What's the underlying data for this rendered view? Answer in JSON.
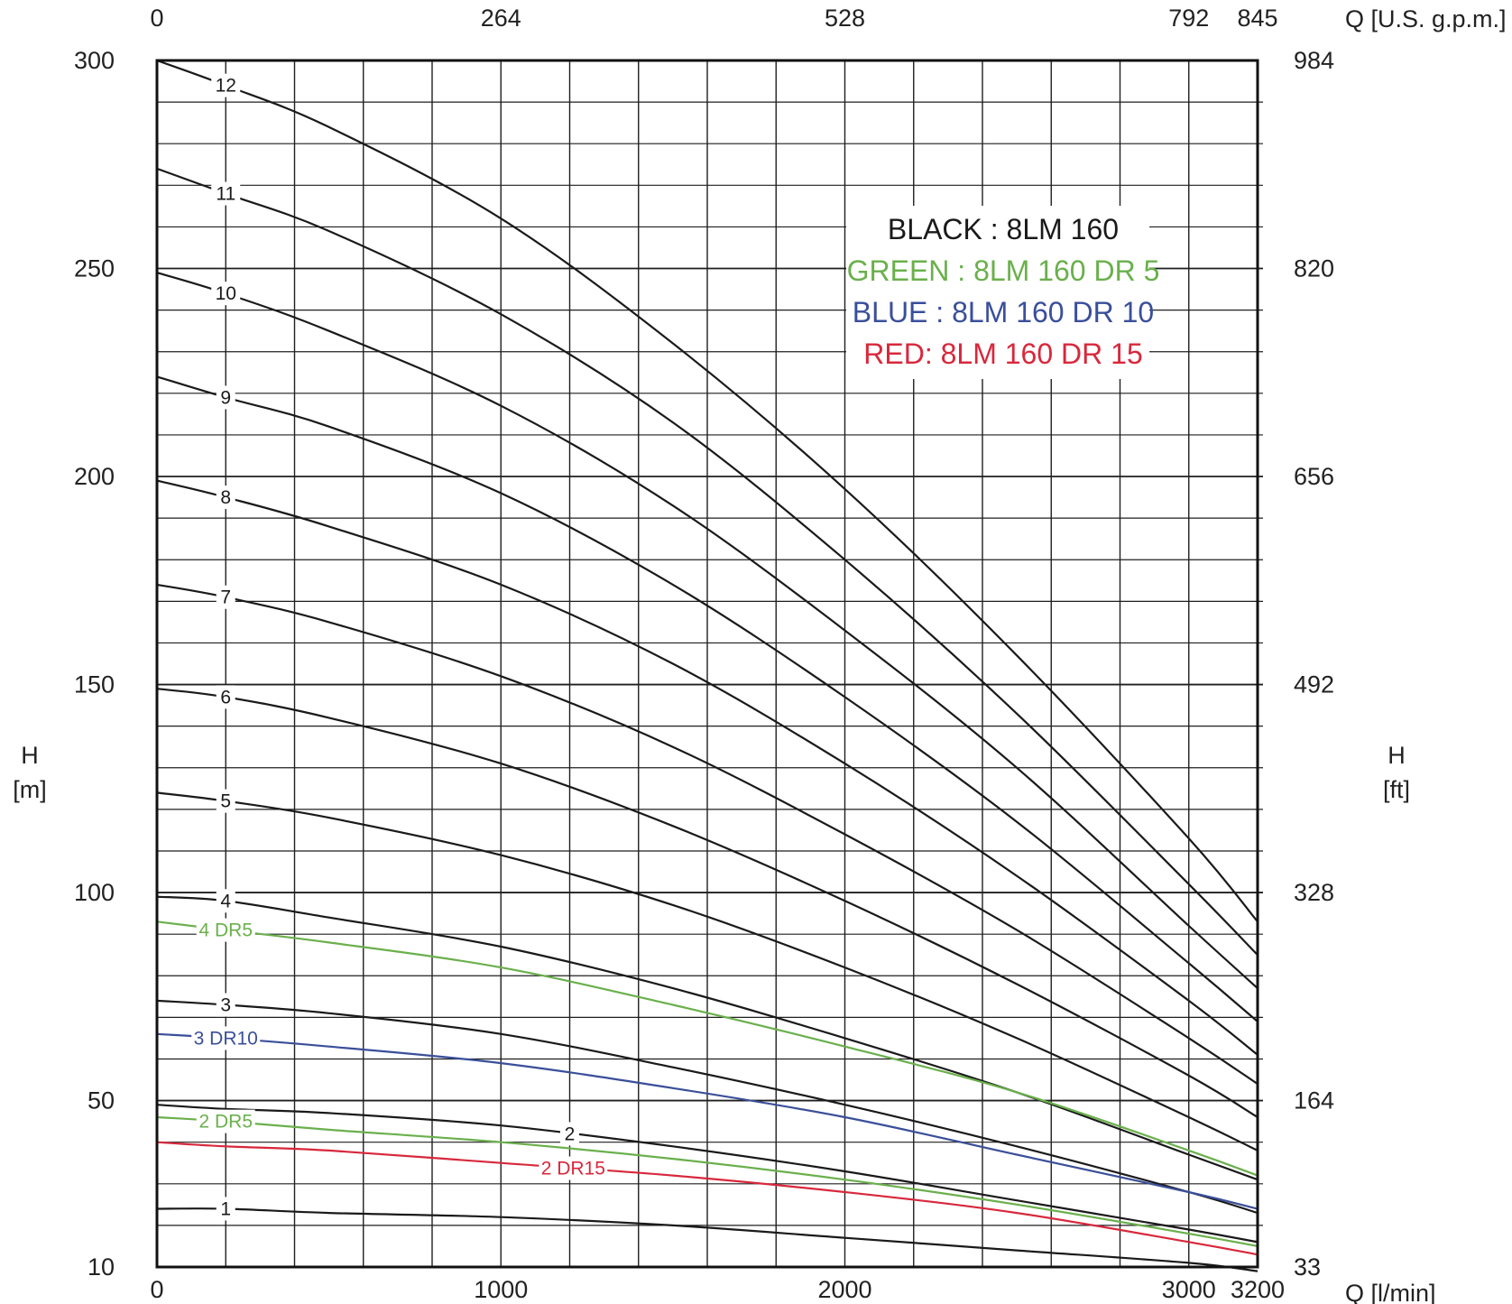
{
  "chart_data": {
    "type": "line",
    "x_axis_bottom": {
      "label": "Q [l/min]",
      "ticks": [
        {
          "value": 0,
          "label": "0"
        },
        {
          "value": 1000,
          "label": "1000"
        },
        {
          "value": 2000,
          "label": "2000"
        },
        {
          "value": 3000,
          "label": "3000"
        },
        {
          "value": 3200,
          "label": "3200"
        }
      ],
      "range": [
        0,
        3200
      ]
    },
    "x_axis_top": {
      "label": "Q [U.S. g.p.m.]",
      "ticks": [
        {
          "value": 0,
          "label": "0"
        },
        {
          "value": 1000,
          "label": "264"
        },
        {
          "value": 2000,
          "label": "528"
        },
        {
          "value": 3000,
          "label": "792"
        },
        {
          "value": 3200,
          "label": "845"
        }
      ]
    },
    "y_axis_left": {
      "label_line1": "H",
      "label_line2": "[m]",
      "ticks": [
        {
          "value": 10,
          "label": "10"
        },
        {
          "value": 50,
          "label": "50"
        },
        {
          "value": 100,
          "label": "100"
        },
        {
          "value": 150,
          "label": "150"
        },
        {
          "value": 200,
          "label": "200"
        },
        {
          "value": 250,
          "label": "250"
        },
        {
          "value": 300,
          "label": "300"
        }
      ],
      "range": [
        10,
        300
      ]
    },
    "y_axis_right": {
      "label_line1": "H",
      "label_line2": "[ft]",
      "ticks": [
        {
          "value": 10,
          "label": "33"
        },
        {
          "value": 50,
          "label": "164"
        },
        {
          "value": 100,
          "label": "328"
        },
        {
          "value": 150,
          "label": "492"
        },
        {
          "value": 200,
          "label": "656"
        },
        {
          "value": 250,
          "label": "820"
        },
        {
          "value": 300,
          "label": "984"
        }
      ]
    },
    "grid": true,
    "legend": {
      "placement": "top-right",
      "entries": [
        {
          "text": "BLACK : 8LM 160",
          "color": "#1a1a1a"
        },
        {
          "text": "GREEN : 8LM 160 DR 5",
          "color": "#6ab04c"
        },
        {
          "text": "BLUE : 8LM 160 DR 10",
          "color": "#3a4f9a"
        },
        {
          "text": "RED: 8LM 160 DR 15",
          "color": "#d8283c"
        }
      ]
    },
    "series": [
      {
        "label": "12",
        "color": "#1a1a1a",
        "x": [
          0,
          200,
          500,
          1000,
          1500,
          2000,
          2500,
          3000,
          3200
        ],
        "y": [
          300,
          294,
          284,
          262,
          232,
          197,
          157,
          113,
          93
        ]
      },
      {
        "label": "11",
        "color": "#1a1a1a",
        "x": [
          0,
          200,
          500,
          1000,
          1500,
          2000,
          2500,
          3000,
          3200
        ],
        "y": [
          274,
          268,
          259,
          239,
          213,
          180,
          143,
          102,
          85
        ]
      },
      {
        "label": "10",
        "color": "#1a1a1a",
        "x": [
          0,
          200,
          500,
          1000,
          1500,
          2000,
          2500,
          3000,
          3200
        ],
        "y": [
          249,
          244,
          235,
          217,
          193,
          163,
          130,
          92,
          77
        ]
      },
      {
        "label": "9",
        "color": "#1a1a1a",
        "x": [
          0,
          200,
          500,
          1000,
          1500,
          2000,
          2500,
          3000,
          3200
        ],
        "y": [
          224,
          219,
          212,
          196,
          174,
          147,
          117,
          83,
          69
        ]
      },
      {
        "label": "8",
        "color": "#1a1a1a",
        "x": [
          0,
          200,
          500,
          1000,
          1500,
          2000,
          2500,
          3000,
          3200
        ],
        "y": [
          199,
          195,
          188,
          174,
          155,
          131,
          104,
          74,
          61
        ]
      },
      {
        "label": "7",
        "color": "#1a1a1a",
        "x": [
          0,
          200,
          500,
          1000,
          1500,
          2000,
          2500,
          3000,
          3200
        ],
        "y": [
          174,
          171,
          165,
          152,
          135,
          114,
          91,
          65,
          54
        ]
      },
      {
        "label": "6",
        "color": "#1a1a1a",
        "x": [
          0,
          200,
          500,
          1000,
          1500,
          2000,
          2500,
          3000,
          3200
        ],
        "y": [
          149,
          147,
          142,
          131,
          116,
          98,
          78,
          56,
          46
        ]
      },
      {
        "label": "5",
        "color": "#1a1a1a",
        "x": [
          0,
          200,
          500,
          1000,
          1500,
          2000,
          2500,
          3000,
          3200
        ],
        "y": [
          124,
          122,
          118,
          109,
          97,
          82,
          65,
          46,
          38
        ]
      },
      {
        "label": "4",
        "color": "#1a1a1a",
        "x": [
          0,
          200,
          500,
          1000,
          1500,
          2000,
          2500,
          3000,
          3200
        ],
        "y": [
          99,
          98,
          94,
          87,
          77,
          65,
          52,
          37,
          31
        ]
      },
      {
        "label": "4 DR5",
        "color": "#6ab04c",
        "x": [
          0,
          200,
          500,
          1000,
          1500,
          2000,
          2500,
          3000,
          3200
        ],
        "y": [
          93,
          91,
          88,
          82,
          73,
          63,
          52,
          38,
          32
        ]
      },
      {
        "label": "3",
        "color": "#1a1a1a",
        "x": [
          0,
          200,
          500,
          1000,
          1500,
          2000,
          2500,
          3000,
          3200
        ],
        "y": [
          74,
          73,
          71,
          66,
          58,
          49,
          39,
          28,
          23
        ]
      },
      {
        "label": "3 DR10",
        "color": "#3a4f9a",
        "x": [
          0,
          200,
          500,
          1000,
          1500,
          2000,
          2500,
          3000,
          3200
        ],
        "y": [
          66,
          65,
          63,
          59,
          53,
          46,
          37,
          28,
          24
        ]
      },
      {
        "label": "2",
        "color": "#1a1a1a",
        "x": [
          0,
          200,
          500,
          1000,
          1500,
          2000,
          2500,
          3000,
          3200
        ],
        "y": [
          49,
          48,
          47,
          44,
          39,
          33,
          26,
          19,
          16
        ]
      },
      {
        "label": "2 DR5",
        "color": "#6ab04c",
        "x": [
          0,
          200,
          500,
          1000,
          1500,
          2000,
          2500,
          3000,
          3200
        ],
        "y": [
          46,
          45,
          43,
          40,
          36,
          31,
          25,
          18,
          15
        ]
      },
      {
        "label": "2 DR15",
        "color": "#d8283c",
        "x": [
          0,
          200,
          500,
          1000,
          1500,
          2000,
          2500,
          3000,
          3200
        ],
        "y": [
          40,
          39,
          38,
          35,
          32,
          28,
          23,
          16,
          13
        ]
      },
      {
        "label": "1",
        "color": "#1a1a1a",
        "x": [
          0,
          200,
          500,
          1000,
          1500,
          2000,
          2500,
          3000,
          3200
        ],
        "y": [
          24,
          24,
          23,
          22,
          20,
          17,
          14,
          11,
          9
        ]
      }
    ]
  }
}
